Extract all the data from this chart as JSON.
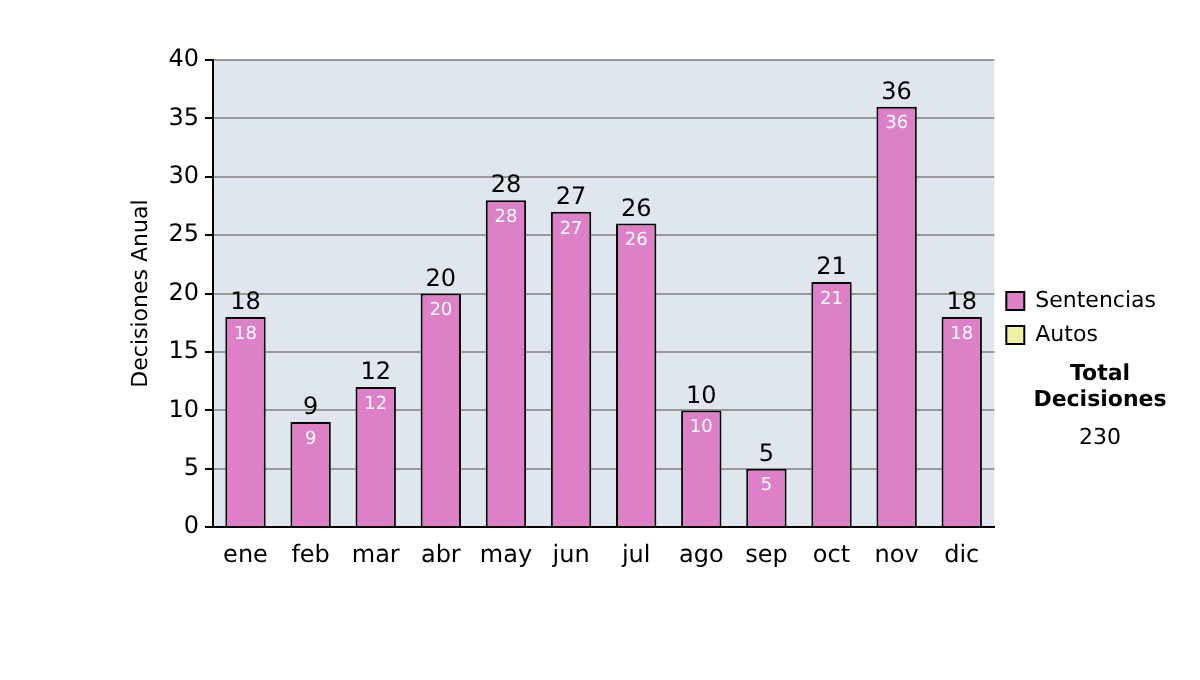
{
  "chart_data": {
    "type": "bar",
    "ylabel": "Decisiones Anual",
    "categories": [
      "ene",
      "feb",
      "mar",
      "abr",
      "may",
      "jun",
      "jul",
      "ago",
      "sep",
      "oct",
      "nov",
      "dic"
    ],
    "series": [
      {
        "name": "Sentencias",
        "color": "#dd80c8",
        "values": [
          18,
          9,
          12,
          20,
          28,
          27,
          26,
          10,
          5,
          21,
          36,
          18
        ],
        "value_labels": [
          "18",
          "9",
          "12",
          "20",
          "28",
          "27",
          "26",
          "10",
          "5",
          "21",
          "36",
          "18"
        ]
      },
      {
        "name": "Autos",
        "color": "#eef0a8",
        "values": [
          null,
          null,
          null,
          null,
          null,
          null,
          null,
          null,
          null,
          null,
          null,
          null
        ]
      }
    ],
    "ylim": [
      0,
      40
    ],
    "yticks": [
      0,
      5,
      10,
      15,
      20,
      25,
      30,
      35,
      40
    ],
    "grid": "y",
    "legend": "right",
    "annotations": [
      "Total Decisiones",
      "230",
      {
        "text": "18",
        "x": "ene",
        "y": 18
      },
      {
        "text": "9",
        "x": "feb",
        "y": 9
      },
      {
        "text": "12",
        "x": "mar",
        "y": 12
      },
      {
        "text": "20",
        "x": "abr",
        "y": 20
      },
      {
        "text": "28",
        "x": "may",
        "y": 28
      },
      {
        "text": "27",
        "x": "jun",
        "y": 27
      },
      {
        "text": "26",
        "x": "jul",
        "y": 26
      },
      {
        "text": "10",
        "x": "ago",
        "y": 10
      },
      {
        "text": "5",
        "x": "sep",
        "y": 5
      },
      {
        "text": "21",
        "x": "oct",
        "y": 21
      },
      {
        "text": "36",
        "x": "nov",
        "y": 36
      },
      {
        "text": "18",
        "x": "dic",
        "y": 18
      }
    ]
  }
}
